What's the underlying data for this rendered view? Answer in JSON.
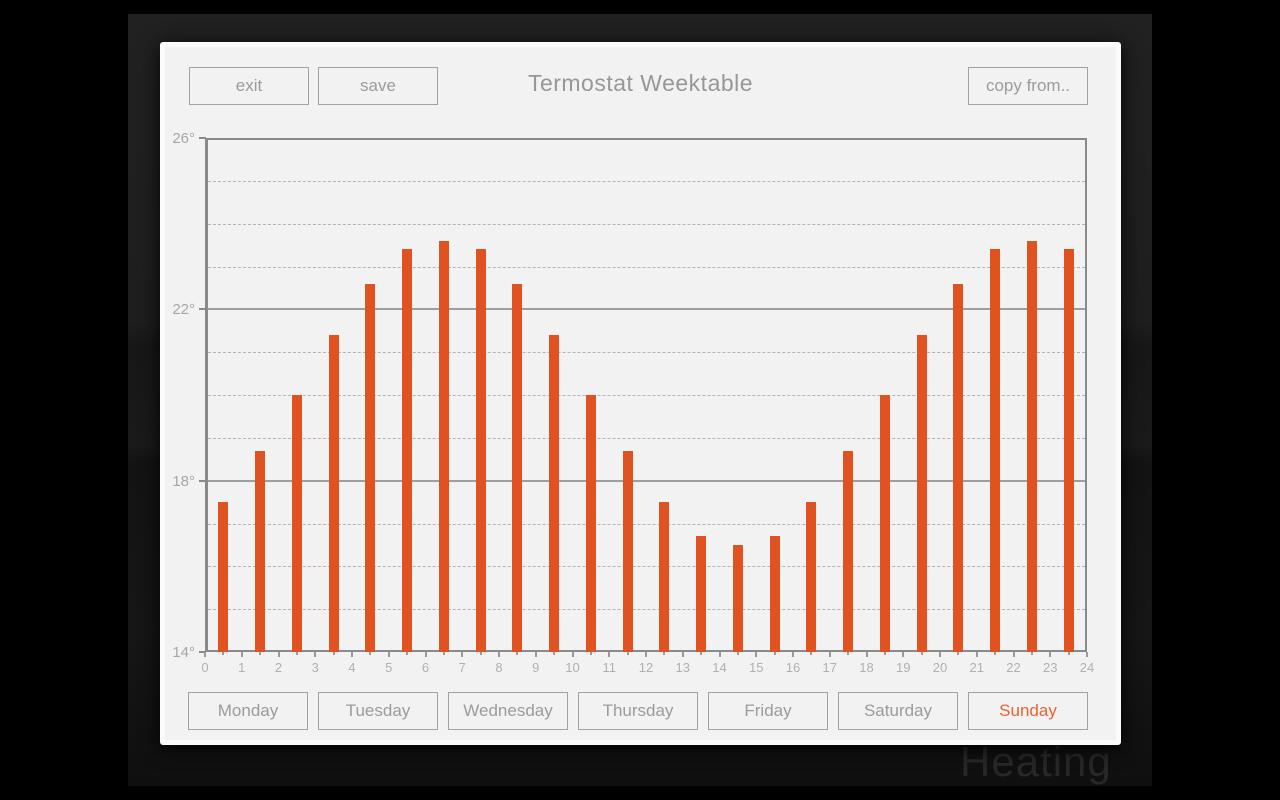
{
  "window": {
    "title": "Termostat Weektable",
    "background_text": "Heating"
  },
  "toolbar": {
    "exit_label": "exit",
    "save_label": "save",
    "copy_from_label": "copy from.."
  },
  "footer": {
    "days": [
      {
        "label": "Monday",
        "active": false
      },
      {
        "label": "Tuesday",
        "active": false
      },
      {
        "label": "Wednesday",
        "active": false
      },
      {
        "label": "Thursday",
        "active": false
      },
      {
        "label": "Friday",
        "active": false
      },
      {
        "label": "Saturday",
        "active": false
      },
      {
        "label": "Sunday",
        "active": true
      }
    ],
    "selected_day": "Sunday"
  },
  "colors": {
    "bar": "#e0521f",
    "active_day_text": "#e8622e",
    "panel_background": "#f2f2f3",
    "muted_text": "#9b9b9b"
  },
  "chart_data": {
    "type": "bar",
    "title": "",
    "x_unit": "hour",
    "hours": [
      0,
      1,
      2,
      3,
      4,
      5,
      6,
      7,
      8,
      9,
      10,
      11,
      12,
      13,
      14,
      15,
      16,
      17,
      18,
      19,
      20,
      21,
      22,
      23
    ],
    "values": [
      17.5,
      18.7,
      20.0,
      21.4,
      22.6,
      23.4,
      23.6,
      23.4,
      22.6,
      21.4,
      20.0,
      18.7,
      17.5,
      16.7,
      16.5,
      16.7,
      17.5,
      18.7,
      20.0,
      21.4,
      22.6,
      23.4,
      23.6,
      23.4
    ],
    "ylim": [
      14,
      26
    ],
    "xlim": [
      0,
      24
    ],
    "x_tick_labels": [
      "0",
      "1",
      "2",
      "3",
      "4",
      "5",
      "6",
      "7",
      "8",
      "9",
      "10",
      "11",
      "12",
      "13",
      "14",
      "15",
      "16",
      "17",
      "18",
      "19",
      "20",
      "21",
      "22",
      "23",
      "24"
    ],
    "y_major_ticks": [
      26,
      22,
      18,
      14
    ],
    "y_tick_labels": [
      "26°",
      "22°",
      "18°",
      "14°"
    ],
    "grid": "horizontal line every 1°, solid at majors (14,18,22,26), dashed at minors",
    "legend": "none",
    "bar_color": "#e0521f"
  }
}
